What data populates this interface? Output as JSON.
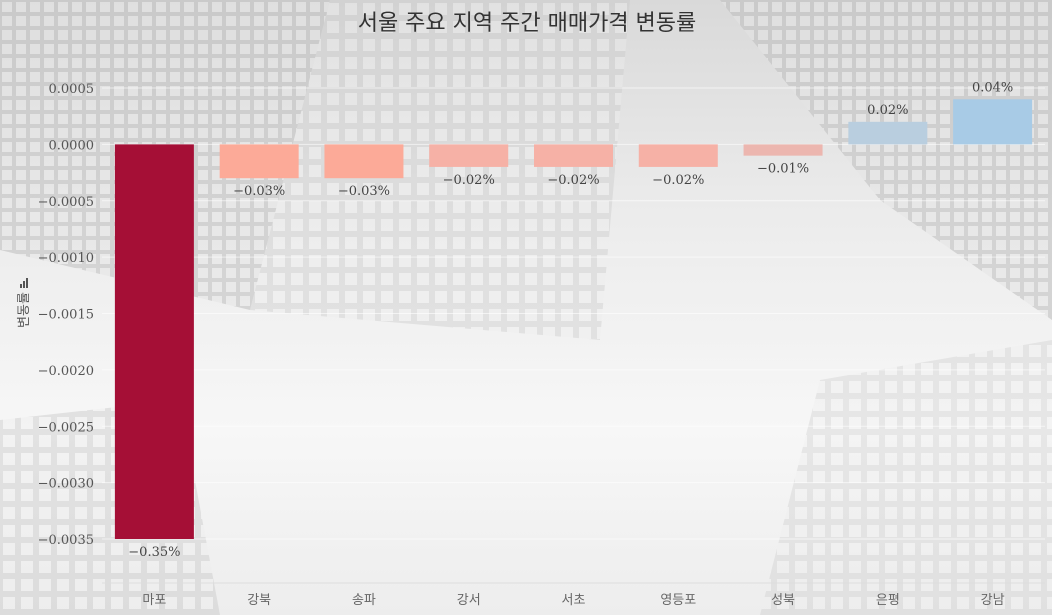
{
  "chart_data": {
    "type": "bar",
    "title": "서울 주요 지역 주간 매매가격 변동률",
    "ylabel": "변동률",
    "xlabel": "",
    "categories": [
      "마포",
      "강북",
      "송파",
      "강서",
      "서초",
      "영등포",
      "성북",
      "은평",
      "강남"
    ],
    "values": [
      -0.0035,
      -0.0003,
      -0.0003,
      -0.0002,
      -0.0002,
      -0.0002,
      -0.0001,
      0.0002,
      0.0004
    ],
    "data_labels": [
      "−0.35%",
      "−0.03%",
      "−0.03%",
      "−0.02%",
      "−0.02%",
      "−0.02%",
      "−0.01%",
      "0.02%",
      "0.04%"
    ],
    "bar_colors": [
      "#a50f36",
      "#fcaa98",
      "#fcaa98",
      "#f6b1a6",
      "#f6b1a6",
      "#f6b1a6",
      "#ecb6af",
      "#b9cedf",
      "#a8cbe6"
    ],
    "yticks": [
      0.0005,
      0,
      -0.0005,
      -0.001,
      -0.0015,
      -0.002,
      -0.0025,
      -0.003,
      -0.0035
    ],
    "ytick_labels": [
      "0.0005",
      "0.0000",
      "−0.0005",
      "−0.0010",
      "−0.0015",
      "−0.0020",
      "−0.0025",
      "−0.0030",
      "−0.0035"
    ],
    "ylim": [
      -0.0039,
      0.0005
    ],
    "grid": true,
    "legend": "none"
  }
}
